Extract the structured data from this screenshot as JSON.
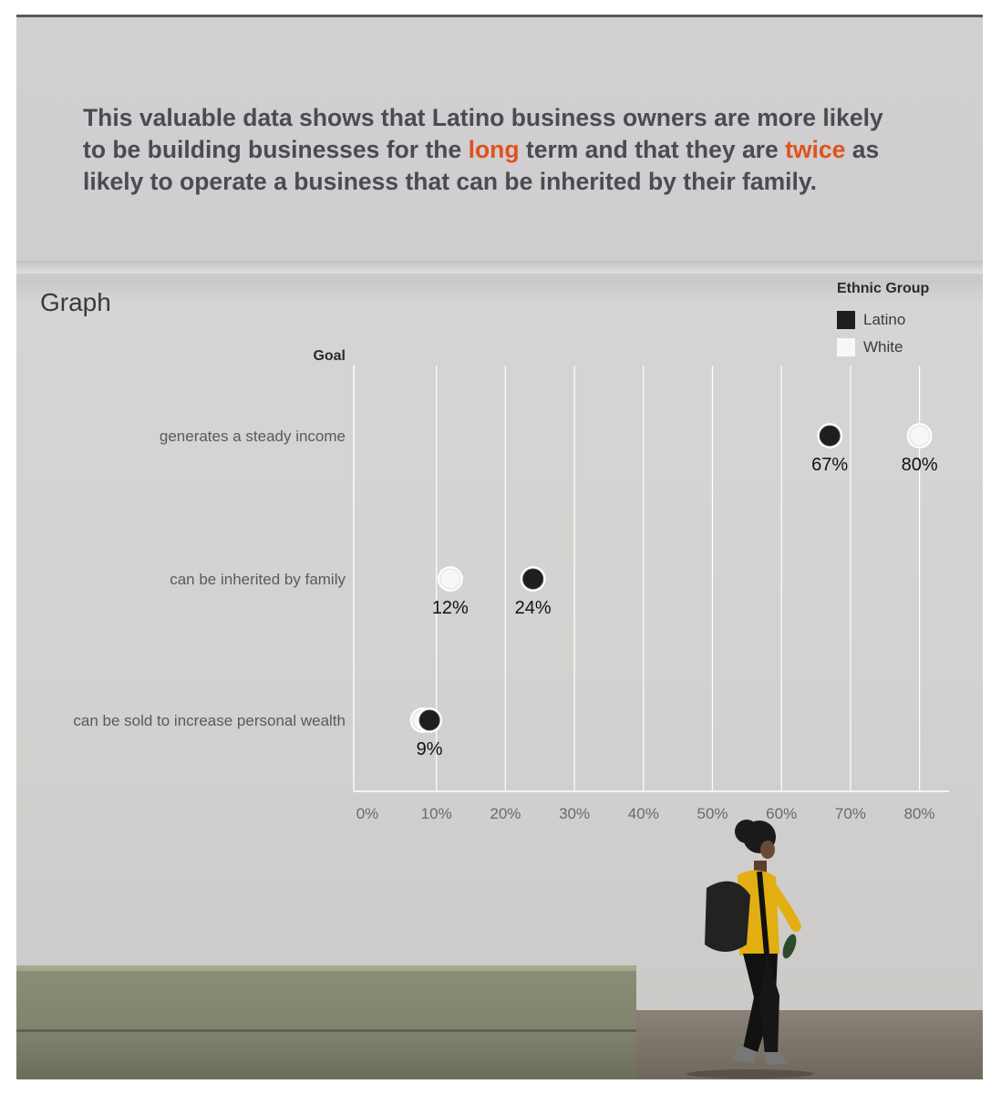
{
  "headline": {
    "part1": "This valuable data shows that Latino business owners are more likely to be building businesses for the ",
    "highlight1": "long",
    "part2": " term and that they are ",
    "highlight2": "twice",
    "part3": " as likely to operate a business that can be inherited by their family."
  },
  "graph_title": "Graph",
  "legend": {
    "title": "Ethnic Group",
    "items": [
      {
        "label": "Latino",
        "color": "#1e1e1e"
      },
      {
        "label": "White",
        "color": "#f7f7f7"
      }
    ]
  },
  "colors": {
    "accent": "#e0521d",
    "latino": "#1e1e1e",
    "white": "#f7f7f7"
  },
  "chart_data": {
    "type": "scatter",
    "ylabel": "Goal",
    "xlabel": "",
    "xlim": [
      0,
      0.85
    ],
    "x_ticks": [
      "0%",
      "10%",
      "20%",
      "30%",
      "40%",
      "50%",
      "60%",
      "70%",
      "80%"
    ],
    "categories": [
      "generates a steady income",
      "can be inherited by family",
      "can be sold to increase personal wealth"
    ],
    "series": [
      {
        "name": "Latino",
        "values": [
          0.67,
          0.24,
          0.09
        ],
        "labels": [
          "67%",
          "24%",
          "9%"
        ]
      },
      {
        "name": "White",
        "values": [
          0.8,
          0.12,
          0.08
        ],
        "labels": [
          "80%",
          "12%",
          ""
        ]
      }
    ],
    "grid": true,
    "legend_position": "top-right"
  }
}
